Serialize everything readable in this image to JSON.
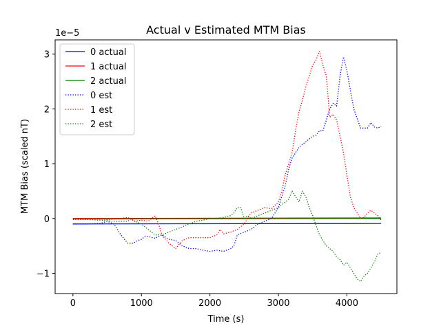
{
  "chart_data": {
    "type": "line",
    "title": "Actual v Estimated MTM Bias",
    "xlabel": "Time (s)",
    "ylabel": "MTM Bias (scaled nT)",
    "offset_label": "1e−5",
    "xlim": [
      -260,
      4730
    ],
    "ylim": [
      -1.37,
      3.26
    ],
    "xticks": [
      0,
      1000,
      2000,
      3000,
      4000
    ],
    "yticks": [
      -1,
      0,
      1,
      2,
      3
    ],
    "grid": false,
    "legend_position": "upper-left",
    "series": [
      {
        "name": "0 actual",
        "color": "#0000ff",
        "style": "solid",
        "x": [
          0,
          4500
        ],
        "y": [
          -0.1,
          -0.09
        ]
      },
      {
        "name": "1 actual",
        "color": "#ff0000",
        "style": "solid",
        "x": [
          0,
          4500
        ],
        "y": [
          0.0,
          0.01
        ]
      },
      {
        "name": "2 actual",
        "color": "#008000",
        "style": "solid",
        "x": [
          0,
          4500
        ],
        "y": [
          -0.01,
          0.0
        ]
      },
      {
        "name": "0 est",
        "color": "#0000ff",
        "style": "dotted",
        "x": [
          0,
          200,
          400,
          500,
          600,
          700,
          800,
          880,
          950,
          1000,
          1050,
          1100,
          1200,
          1300,
          1400,
          1500,
          1600,
          1700,
          1800,
          1900,
          2000,
          2100,
          2200,
          2300,
          2350,
          2400,
          2500,
          2600,
          2700,
          2800,
          2900,
          3000,
          3050,
          3100,
          3150,
          3200,
          3250,
          3300,
          3400,
          3500,
          3550,
          3600,
          3650,
          3700,
          3750,
          3800,
          3850,
          3900,
          3950,
          4000,
          4050,
          4100,
          4200,
          4300,
          4350,
          4400,
          4450,
          4500
        ],
        "y": [
          -0.1,
          -0.1,
          -0.09,
          -0.05,
          -0.1,
          -0.3,
          -0.45,
          -0.45,
          -0.4,
          -0.38,
          -0.33,
          -0.33,
          -0.36,
          -0.3,
          -0.38,
          -0.4,
          -0.5,
          -0.55,
          -0.55,
          -0.58,
          -0.6,
          -0.58,
          -0.6,
          -0.55,
          -0.5,
          -0.3,
          -0.25,
          -0.2,
          -0.1,
          -0.05,
          0.0,
          0.2,
          0.4,
          0.6,
          0.9,
          1.1,
          1.2,
          1.3,
          1.4,
          1.5,
          1.52,
          1.6,
          1.6,
          1.8,
          2.0,
          2.1,
          2.05,
          2.6,
          2.95,
          2.7,
          2.35,
          2.0,
          1.65,
          1.65,
          1.75,
          1.67,
          1.65,
          1.68
        ]
      },
      {
        "name": "1 est",
        "color": "#ff0000",
        "style": "dotted",
        "x": [
          0,
          300,
          500,
          700,
          800,
          900,
          1000,
          1100,
          1200,
          1250,
          1300,
          1400,
          1500,
          1600,
          1700,
          1800,
          1900,
          2000,
          2100,
          2150,
          2200,
          2300,
          2400,
          2500,
          2600,
          2700,
          2800,
          2900,
          3000,
          3050,
          3100,
          3200,
          3250,
          3300,
          3350,
          3400,
          3450,
          3500,
          3550,
          3600,
          3650,
          3700,
          3750,
          3800,
          3850,
          3900,
          3950,
          4000,
          4050,
          4100,
          4150,
          4200,
          4250,
          4300,
          4350,
          4400,
          4450,
          4500
        ],
        "y": [
          0.0,
          0.0,
          -0.02,
          0.0,
          0.02,
          -0.05,
          -0.03,
          -0.05,
          0.05,
          -0.1,
          -0.3,
          -0.45,
          -0.55,
          -0.4,
          -0.35,
          -0.35,
          -0.35,
          -0.35,
          -0.3,
          -0.2,
          -0.28,
          -0.25,
          -0.2,
          -0.1,
          0.1,
          0.15,
          0.2,
          0.18,
          0.3,
          0.5,
          0.8,
          1.2,
          1.6,
          1.95,
          2.15,
          2.4,
          2.6,
          2.8,
          2.9,
          3.05,
          2.8,
          2.6,
          1.85,
          1.9,
          1.8,
          1.5,
          1.2,
          0.8,
          0.4,
          0.2,
          0.1,
          0.0,
          0.02,
          0.1,
          0.15,
          0.1,
          0.05,
          -0.03
        ]
      },
      {
        "name": "2 est",
        "color": "#008000",
        "style": "dotted",
        "x": [
          0,
          200,
          400,
          600,
          700,
          800,
          850,
          900,
          1000,
          1100,
          1200,
          1300,
          1400,
          1500,
          1600,
          1700,
          1800,
          1900,
          2000,
          2100,
          2200,
          2300,
          2350,
          2400,
          2450,
          2500,
          2550,
          2600,
          2700,
          2800,
          2900,
          3000,
          3100,
          3150,
          3200,
          3250,
          3300,
          3350,
          3400,
          3450,
          3500,
          3600,
          3700,
          3800,
          3850,
          3900,
          3950,
          4000,
          4050,
          4100,
          4150,
          4200,
          4250,
          4300,
          4350,
          4400,
          4450,
          4500
        ],
        "y": [
          -0.02,
          -0.02,
          -0.03,
          -0.05,
          -0.05,
          -0.05,
          0.0,
          -0.05,
          -0.1,
          -0.2,
          -0.3,
          -0.3,
          -0.25,
          -0.2,
          -0.15,
          -0.1,
          -0.05,
          -0.03,
          0.0,
          0.0,
          0.02,
          0.05,
          0.1,
          0.2,
          0.2,
          0.0,
          0.05,
          0.0,
          0.05,
          0.1,
          0.15,
          0.2,
          0.3,
          0.35,
          0.5,
          0.4,
          0.3,
          0.5,
          0.4,
          0.2,
          0.05,
          -0.3,
          -0.5,
          -0.6,
          -0.7,
          -0.75,
          -0.85,
          -0.8,
          -0.9,
          -1.0,
          -1.1,
          -1.15,
          -1.05,
          -1.0,
          -0.9,
          -0.8,
          -0.65,
          -0.62
        ]
      }
    ]
  }
}
